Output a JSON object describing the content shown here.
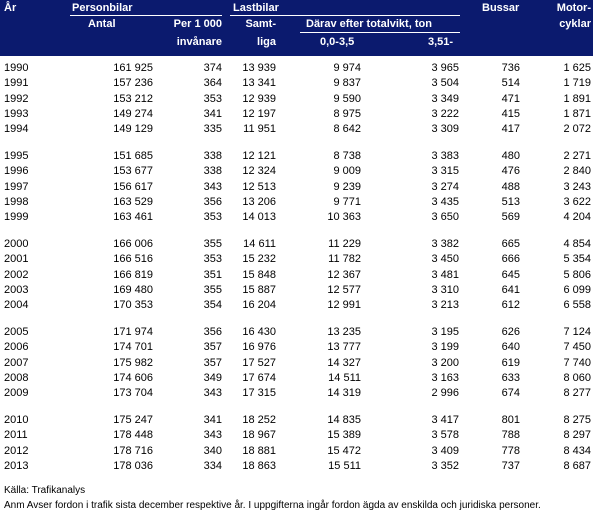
{
  "header": {
    "year": "År",
    "personbilar": "Personbilar",
    "antal": "Antal",
    "per1000": "Per 1 000",
    "invanare": "invånare",
    "lastbilar": "Lastbilar",
    "samt": "Samt-",
    "liga": "liga",
    "darav": "Därav efter totalvikt, ton",
    "light": "0,0-3,5",
    "heavy": "3,51-",
    "bussar": "Bussar",
    "motor": "Motor-",
    "cyklar": "cyklar"
  },
  "table": {
    "rows": [
      [
        "1990",
        "161 925",
        "374",
        "13 939",
        "9 974",
        "3 965",
        "736",
        "1 625"
      ],
      [
        "1991",
        "157 236",
        "364",
        "13 341",
        "9 837",
        "3 504",
        "514",
        "1 719"
      ],
      [
        "1992",
        "153 212",
        "353",
        "12 939",
        "9 590",
        "3 349",
        "471",
        "1 891"
      ],
      [
        "1993",
        "149 274",
        "341",
        "12 197",
        "8 975",
        "3 222",
        "415",
        "1 871"
      ],
      [
        "1994",
        "149 129",
        "335",
        "11 951",
        "8 642",
        "3 309",
        "417",
        "2 072"
      ],
      [
        "1995",
        "151 685",
        "338",
        "12 121",
        "8 738",
        "3 383",
        "480",
        "2 271"
      ],
      [
        "1996",
        "153 677",
        "338",
        "12 324",
        "9 009",
        "3 315",
        "476",
        "2 840"
      ],
      [
        "1997",
        "156 617",
        "343",
        "12 513",
        "9 239",
        "3 274",
        "488",
        "3 243"
      ],
      [
        "1998",
        "163 529",
        "356",
        "13 206",
        "9 771",
        "3 435",
        "513",
        "3 622"
      ],
      [
        "1999",
        "163 461",
        "353",
        "14 013",
        "10 363",
        "3 650",
        "569",
        "4 204"
      ],
      [
        "2000",
        "166 006",
        "355",
        "14 611",
        "11 229",
        "3 382",
        "665",
        "4 854"
      ],
      [
        "2001",
        "166 516",
        "353",
        "15 232",
        "11 782",
        "3 450",
        "666",
        "5 354"
      ],
      [
        "2002",
        "166 819",
        "351",
        "15 848",
        "12 367",
        "3 481",
        "645",
        "5 806"
      ],
      [
        "2003",
        "169 480",
        "355",
        "15 887",
        "12 577",
        "3 310",
        "641",
        "6 099"
      ],
      [
        "2004",
        "170 353",
        "354",
        "16 204",
        "12 991",
        "3 213",
        "612",
        "6 558"
      ],
      [
        "2005",
        "171 974",
        "356",
        "16 430",
        "13 235",
        "3 195",
        "626",
        "7 124"
      ],
      [
        "2006",
        "174 701",
        "357",
        "16 976",
        "13 777",
        "3 199",
        "640",
        "7 450"
      ],
      [
        "2007",
        "175 982",
        "357",
        "17 527",
        "14 327",
        "3 200",
        "619",
        "7 740"
      ],
      [
        "2008",
        "174 606",
        "349",
        "17 674",
        "14 511",
        "3 163",
        "633",
        "8 060"
      ],
      [
        "2009",
        "173 704",
        "343",
        "17 315",
        "14 319",
        "2 996",
        "674",
        "8 277"
      ],
      [
        "2010",
        "175 247",
        "341",
        "18 252",
        "14 835",
        "3 417",
        "801",
        "8 275"
      ],
      [
        "2011",
        "178 448",
        "343",
        "18 967",
        "15 389",
        "3 578",
        "788",
        "8 297"
      ],
      [
        "2012",
        "178 716",
        "340",
        "18 881",
        "15 472",
        "3 409",
        "778",
        "8 434"
      ],
      [
        "2013",
        "178 036",
        "334",
        "18 863",
        "15 511",
        "3 352",
        "737",
        "8 687"
      ]
    ]
  },
  "footer": {
    "source": "Källa:  Trafikanalys",
    "note": "Anm Avser fordon i trafik sista december respektive år. I uppgifterna ingår fordon ägda av enskilda och juridiska personer."
  }
}
